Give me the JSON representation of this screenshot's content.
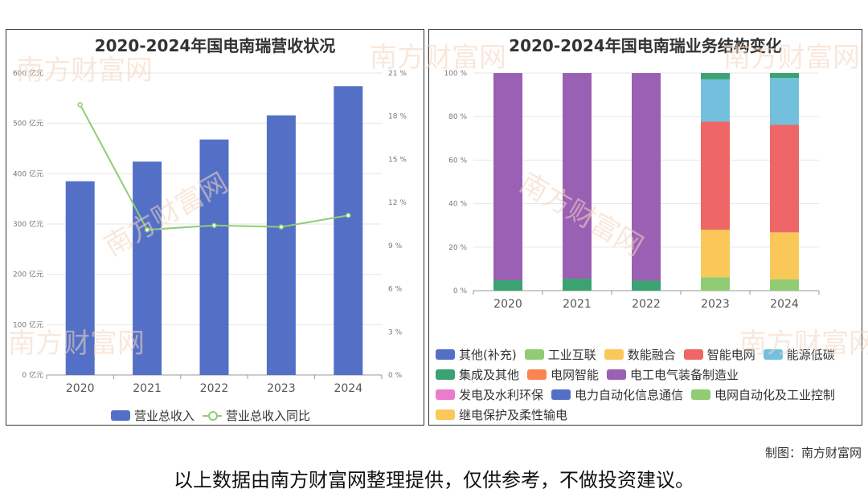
{
  "watermark": "南方财富网",
  "credit": "制图：南方财富网",
  "disclaimer": "以上数据由南方财富网整理提供，仅供参考，不做投资建议。",
  "left_chart": {
    "title": "2020-2024年国电南瑞营收状况",
    "legend": [
      {
        "label": "营业总收入",
        "color": "#5470c6",
        "kind": "bar"
      },
      {
        "label": "营业总收入同比",
        "color": "#91cc75",
        "kind": "line"
      }
    ]
  },
  "right_chart": {
    "title": "2020-2024年国电南瑞业务结构变化",
    "legend": [
      {
        "label": "其他(补充)",
        "color": "#5470c6"
      },
      {
        "label": "工业互联",
        "color": "#91cc75"
      },
      {
        "label": "数能融合",
        "color": "#fac858"
      },
      {
        "label": "智能电网",
        "color": "#ee6666"
      },
      {
        "label": "能源低碳",
        "color": "#73c0de"
      },
      {
        "label": "集成及其他",
        "color": "#3ba272"
      },
      {
        "label": "电网智能",
        "color": "#fc8452"
      },
      {
        "label": "电工电气装备制造业",
        "color": "#9a60b4"
      },
      {
        "label": "发电及水利环保",
        "color": "#ea7ccc"
      },
      {
        "label": "电力自动化信息通信",
        "color": "#5470c6"
      },
      {
        "label": "电网自动化及工业控制",
        "color": "#91cc75"
      },
      {
        "label": "继电保护及柔性输电",
        "color": "#fac858"
      }
    ]
  },
  "chart_data": [
    {
      "type": "bar",
      "title": "2020-2024年国电南瑞营收状况",
      "categories": [
        "2020",
        "2021",
        "2022",
        "2023",
        "2024"
      ],
      "series": [
        {
          "name": "营业总收入",
          "type": "bar",
          "axis": "left",
          "values": [
            385,
            424,
            468,
            516,
            574
          ]
        },
        {
          "name": "营业总收入同比",
          "type": "line",
          "axis": "right",
          "values": [
            18.8,
            10.1,
            10.4,
            10.3,
            11.1
          ]
        }
      ],
      "y_left": {
        "range": [
          0,
          600
        ],
        "ticks": [
          0,
          100,
          200,
          300,
          400,
          500,
          600
        ],
        "unit": "亿元"
      },
      "y_right": {
        "range": [
          0,
          21
        ],
        "ticks": [
          0,
          3,
          6,
          9,
          12,
          15,
          18,
          21
        ],
        "unit": "%"
      },
      "grid": true,
      "legend_position": "bottom"
    },
    {
      "type": "bar",
      "stacked": true,
      "title": "2020-2024年国电南瑞业务结构变化",
      "categories": [
        "2020",
        "2021",
        "2022",
        "2023",
        "2024"
      ],
      "series": [
        {
          "name": "集成及其他",
          "color": "#3ba272",
          "values": [
            4.8,
            5.5,
            4.6,
            0,
            0
          ]
        },
        {
          "name": "电工电气装备制造业",
          "color": "#9a60b4",
          "values": [
            95.2,
            94.5,
            95.4,
            0,
            0
          ]
        },
        {
          "name": "工业互联",
          "color": "#91cc75",
          "values": [
            0,
            0,
            0,
            6.2,
            5.2
          ]
        },
        {
          "name": "数能融合",
          "color": "#fac858",
          "values": [
            0,
            0,
            0,
            21.8,
            21.6
          ]
        },
        {
          "name": "智能电网",
          "color": "#ee6666",
          "values": [
            0,
            0,
            0,
            49.7,
            49.4
          ]
        },
        {
          "name": "能源低碳",
          "color": "#73c0de",
          "values": [
            0,
            0,
            0,
            19.4,
            21.5
          ]
        },
        {
          "name": "其他(补充)",
          "color": "#3ba272",
          "values": [
            0,
            0,
            0,
            2.9,
            2.3
          ]
        }
      ],
      "y": {
        "range": [
          0,
          100
        ],
        "ticks": [
          0,
          20,
          40,
          60,
          80,
          100
        ],
        "unit": "%"
      },
      "legend_position": "bottom"
    }
  ]
}
